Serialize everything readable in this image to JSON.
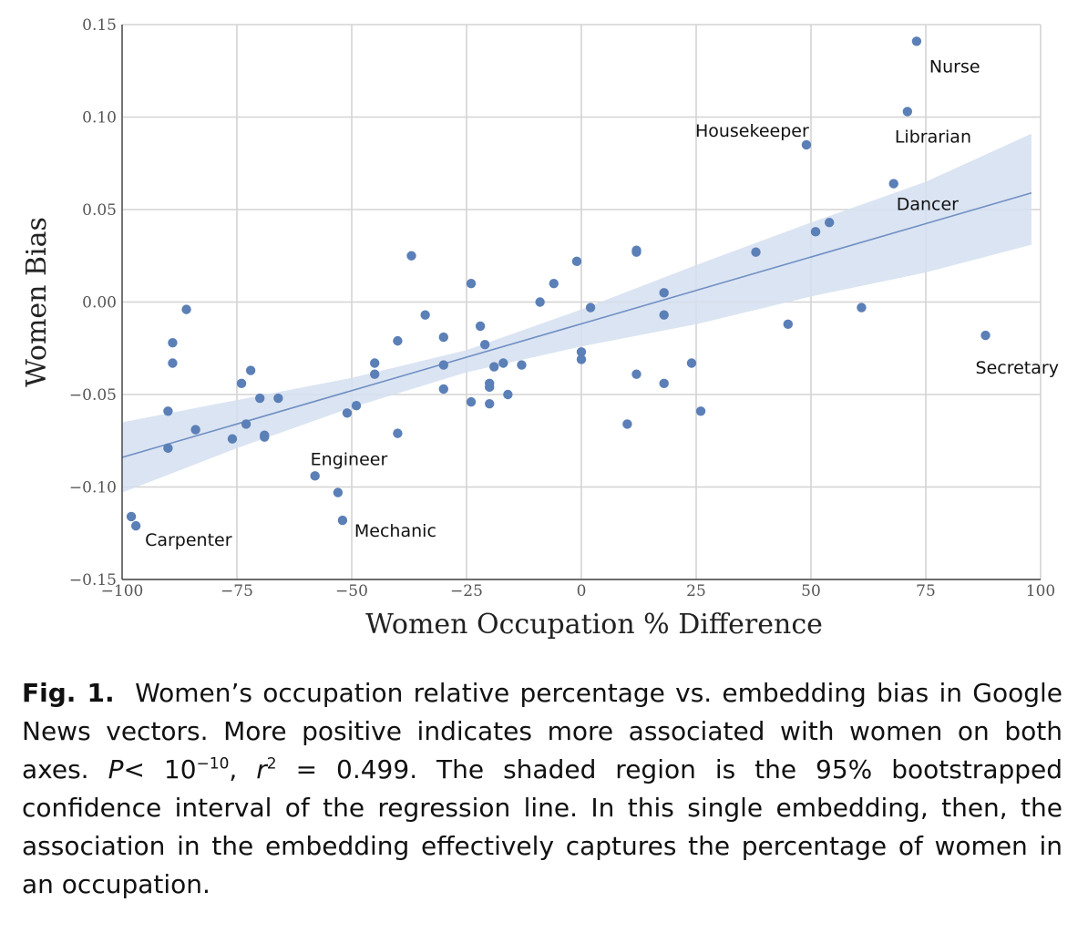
{
  "chart_data": {
    "type": "scatter",
    "xlabel": "Women Occupation % Difference",
    "ylabel": "Women Bias",
    "xlim": [
      -100,
      100
    ],
    "ylim": [
      -0.15,
      0.15
    ],
    "x_ticks": [
      -100,
      -75,
      -50,
      -25,
      0,
      25,
      50,
      75,
      100
    ],
    "y_ticks": [
      -0.15,
      -0.1,
      -0.05,
      0.0,
      0.05,
      0.1,
      0.15
    ],
    "x_tick_labels": [
      "−100",
      "−75",
      "−50",
      "−25",
      "0",
      "25",
      "50",
      "75",
      "100"
    ],
    "y_tick_labels": [
      "−0.15",
      "−0.10",
      "−0.05",
      "0.00",
      "0.05",
      "0.10",
      "0.15"
    ],
    "grid": true,
    "point_color": "#5b7fb7",
    "line_color": "#6f8fc4",
    "band_color": "#d5dff0",
    "regression_line": {
      "x": [
        -100,
        98
      ],
      "y": [
        -0.084,
        0.059
      ]
    },
    "confidence_band": {
      "x": [
        -100,
        -75,
        -50,
        -25,
        0,
        25,
        50,
        75,
        98
      ],
      "upper": [
        -0.065,
        -0.053,
        -0.041,
        -0.026,
        -0.004,
        0.02,
        0.043,
        0.065,
        0.091
      ],
      "lower": [
        -0.103,
        -0.079,
        -0.057,
        -0.038,
        -0.024,
        -0.012,
        0.003,
        0.016,
        0.031
      ]
    },
    "points": [
      {
        "x": 73,
        "y": 0.141,
        "label": "Nurse"
      },
      {
        "x": 71,
        "y": 0.103,
        "label": "Librarian"
      },
      {
        "x": 49,
        "y": 0.085,
        "label": "Housekeeper"
      },
      {
        "x": 68,
        "y": 0.064,
        "label": "Dancer"
      },
      {
        "x": 88,
        "y": -0.018,
        "label": "Secretary"
      },
      {
        "x": -58,
        "y": -0.094,
        "label": "Engineer"
      },
      {
        "x": -52,
        "y": -0.118,
        "label": "Mechanic"
      },
      {
        "x": -98,
        "y": -0.116,
        "label": "Carpenter"
      },
      {
        "x": -97,
        "y": -0.121
      },
      {
        "x": -86,
        "y": -0.004
      },
      {
        "x": -89,
        "y": -0.022
      },
      {
        "x": -89,
        "y": -0.033
      },
      {
        "x": -90,
        "y": -0.059
      },
      {
        "x": -90,
        "y": -0.079
      },
      {
        "x": -84,
        "y": -0.069
      },
      {
        "x": -76,
        "y": -0.074
      },
      {
        "x": -74,
        "y": -0.044
      },
      {
        "x": -73,
        "y": -0.066
      },
      {
        "x": -72,
        "y": -0.037
      },
      {
        "x": -70,
        "y": -0.052
      },
      {
        "x": -69,
        "y": -0.072
      },
      {
        "x": -69,
        "y": -0.073
      },
      {
        "x": -66,
        "y": -0.052
      },
      {
        "x": -53,
        "y": -0.103
      },
      {
        "x": -51,
        "y": -0.06
      },
      {
        "x": -49,
        "y": -0.056
      },
      {
        "x": -45,
        "y": -0.033
      },
      {
        "x": -45,
        "y": -0.039
      },
      {
        "x": -40,
        "y": -0.021
      },
      {
        "x": -40,
        "y": -0.071
      },
      {
        "x": -37,
        "y": 0.025
      },
      {
        "x": -34,
        "y": -0.007
      },
      {
        "x": -30,
        "y": -0.019
      },
      {
        "x": -30,
        "y": -0.034
      },
      {
        "x": -30,
        "y": -0.047
      },
      {
        "x": -24,
        "y": 0.01
      },
      {
        "x": -24,
        "y": -0.054
      },
      {
        "x": -22,
        "y": -0.013
      },
      {
        "x": -21,
        "y": -0.023
      },
      {
        "x": -20,
        "y": -0.044
      },
      {
        "x": -20,
        "y": -0.046
      },
      {
        "x": -20,
        "y": -0.055
      },
      {
        "x": -19,
        "y": -0.035
      },
      {
        "x": -17,
        "y": -0.033
      },
      {
        "x": -16,
        "y": -0.05
      },
      {
        "x": -13,
        "y": -0.034
      },
      {
        "x": -9,
        "y": 0.0
      },
      {
        "x": -6,
        "y": 0.01
      },
      {
        "x": -1,
        "y": 0.022
      },
      {
        "x": 0,
        "y": -0.027
      },
      {
        "x": 0,
        "y": -0.031
      },
      {
        "x": 2,
        "y": -0.003
      },
      {
        "x": 10,
        "y": -0.066
      },
      {
        "x": 12,
        "y": 0.027
      },
      {
        "x": 12,
        "y": 0.028
      },
      {
        "x": 12,
        "y": -0.039
      },
      {
        "x": 18,
        "y": 0.005
      },
      {
        "x": 18,
        "y": -0.007
      },
      {
        "x": 18,
        "y": -0.044
      },
      {
        "x": 24,
        "y": -0.033
      },
      {
        "x": 26,
        "y": -0.059
      },
      {
        "x": 38,
        "y": 0.027
      },
      {
        "x": 45,
        "y": -0.012
      },
      {
        "x": 51,
        "y": 0.038
      },
      {
        "x": 54,
        "y": 0.043
      },
      {
        "x": 61,
        "y": -0.003
      }
    ]
  },
  "caption": {
    "fig_label": "Fig. 1.",
    "text_before_p": "Women’s occupation relative percentage vs. embedding bias in Google News vectors. More positive indicates more associated with women on both axes.",
    "p_var": "P",
    "lt": "<",
    "p_base": "10",
    "p_exp": "−10",
    "r_var": "r",
    "r_exp": "2",
    "r_eq": "=",
    "r_val": "0.499",
    "text_after": ". The shaded region is the 95% bootstrapped confidence interval of the regression line. In this single embedding, then, the association in the embedding effectively captures the percentage of women in an occupation."
  }
}
